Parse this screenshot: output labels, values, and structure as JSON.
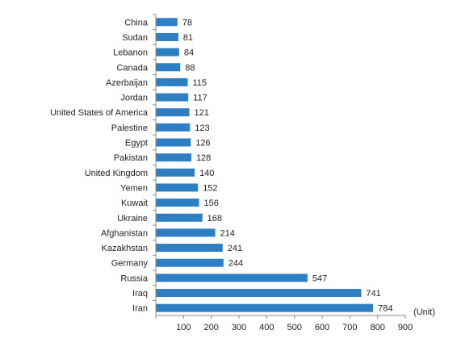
{
  "chart_data": {
    "type": "bar",
    "orientation": "horizontal",
    "categories": [
      "China",
      "Sudan",
      "Lebanon",
      "Canada",
      "Azerbaijan",
      "Jordan",
      "United States of America",
      "Palestine",
      "Egypt",
      "Pakistan",
      "United Kingdom",
      "Yemen",
      "Kuwait",
      "Ukraine",
      "Afghanistan",
      "Kazakhstan",
      "Germany",
      "Russia",
      "Iraq",
      "Iran"
    ],
    "values": [
      78,
      81,
      84,
      88,
      115,
      117,
      121,
      123,
      126,
      128,
      140,
      152,
      156,
      168,
      214,
      241,
      244,
      547,
      741,
      784
    ],
    "value_labels": [
      "78",
      "81",
      "84",
      "88",
      "115",
      "117",
      "121",
      "123",
      "126",
      "128",
      "140",
      "152",
      "156",
      "168",
      "214",
      "241",
      "244",
      "547",
      "741",
      "784"
    ],
    "x_ticks": [
      100,
      200,
      300,
      400,
      500,
      600,
      700,
      800,
      900
    ],
    "x_tick_labels": [
      "100",
      "200",
      "300",
      "400",
      "500",
      "600",
      "700",
      "800",
      "900"
    ],
    "xlim": [
      0,
      900
    ],
    "unit_label": "(Unit)",
    "bar_color": "#2e7ec4",
    "grid": false,
    "legend": false
  }
}
